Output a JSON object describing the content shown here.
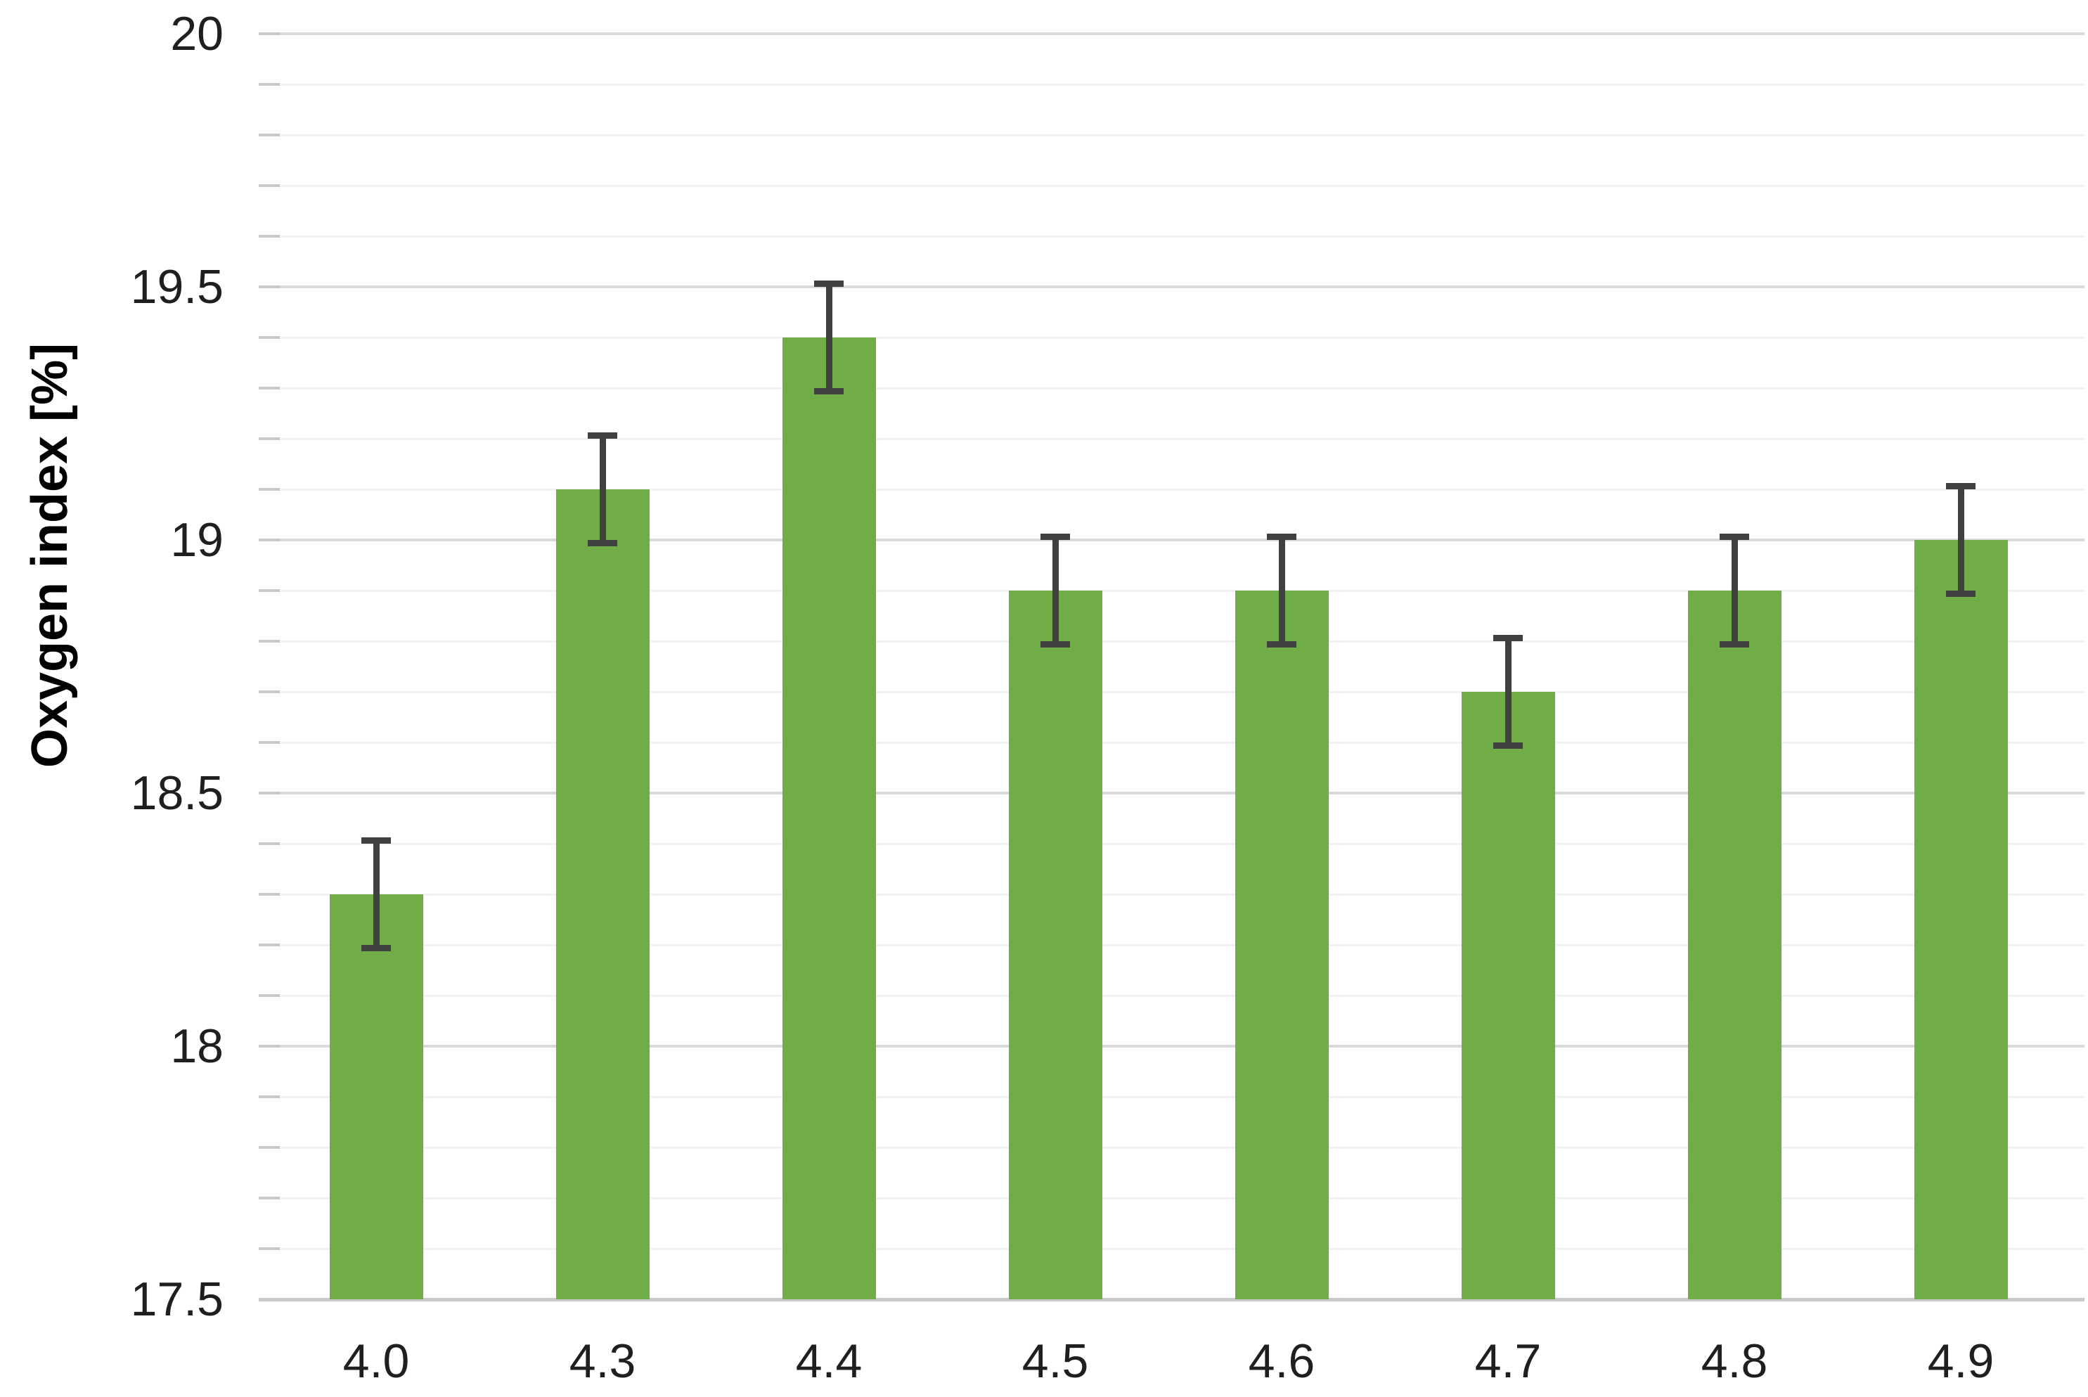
{
  "chart_data": {
    "type": "bar",
    "title": "",
    "xlabel": "",
    "ylabel": "Oxygen index [%]",
    "categories": [
      "4.0",
      "4.3",
      "4.4",
      "4.5",
      "4.6",
      "4.7",
      "4.8",
      "4.9"
    ],
    "series": [
      {
        "name": "Oxygen index",
        "values": [
          18.3,
          19.1,
          19.4,
          18.9,
          18.9,
          18.7,
          18.9,
          19.0
        ],
        "error_bars": [
          0.1,
          0.1,
          0.1,
          0.1,
          0.1,
          0.1,
          0.1,
          0.1
        ]
      }
    ],
    "ylim": [
      17.5,
      20
    ],
    "ytick_major_labels": [
      "17.5",
      "18",
      "18.5",
      "19",
      "19.5",
      "20"
    ],
    "ytick_major_values": [
      17.5,
      18,
      18.5,
      19,
      19.5,
      20
    ],
    "ytick_minor_step": 0.1,
    "grid": "horizontal major and minor, no vertical gridlines",
    "legend": "none",
    "colors": {
      "bar_fill": "#70AD47",
      "error_bar": "#404040",
      "major_gridline": "#D9D9D9",
      "minor_gridline": "#F2F2F2",
      "axis_line": "#C9C9C9",
      "tick_mark": "#C9C9C9",
      "label_text": "#1F1F1F",
      "title_text": "#000000"
    }
  }
}
